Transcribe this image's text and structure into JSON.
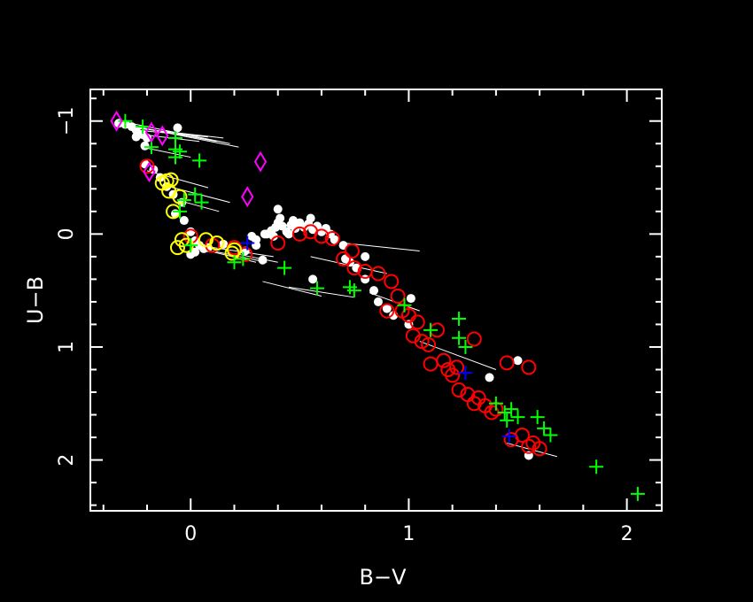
{
  "chart_data": {
    "type": "scatter",
    "title": "",
    "xlabel": "B−V",
    "ylabel": "U−B",
    "xlim": [
      -0.46,
      2.16
    ],
    "ylim": [
      2.45,
      -1.28
    ],
    "y_inverted": true,
    "grid": false,
    "legend": "none",
    "x_ticks": [
      {
        "value": 0,
        "label": "0"
      },
      {
        "value": 1,
        "label": "1"
      },
      {
        "value": 2,
        "label": "2"
      }
    ],
    "y_ticks": [
      {
        "value": -1,
        "label": "−1"
      },
      {
        "value": 0,
        "label": "0"
      },
      {
        "value": 1,
        "label": "1"
      },
      {
        "value": 2,
        "label": "2"
      }
    ],
    "x_minor_step": 0.2,
    "y_minor_step": 0.2,
    "colors": {
      "background": "#000000",
      "axes": "#ffffff",
      "white": "#ffffff",
      "red": "#ff0000",
      "green": "#00ff00",
      "yellow": "#ffff00",
      "magenta": "#ff00ff",
      "blue": "#0000ff"
    },
    "series": [
      {
        "marker": "dot",
        "color": "white",
        "points": [
          [
            -0.33,
            -0.98
          ],
          [
            -0.3,
            -0.97
          ],
          [
            -0.27,
            -0.95
          ],
          [
            -0.25,
            -0.92
          ],
          [
            -0.22,
            -0.88
          ],
          [
            -0.2,
            -0.85
          ],
          [
            -0.25,
            -0.86
          ],
          [
            -0.21,
            -0.78
          ],
          [
            -0.06,
            -0.94
          ],
          [
            -0.21,
            -0.62
          ],
          [
            -0.17,
            -0.57
          ],
          [
            -0.14,
            -0.5
          ],
          [
            -0.11,
            -0.42
          ],
          [
            -0.08,
            -0.35
          ],
          [
            -0.04,
            -0.28
          ],
          [
            -0.07,
            -0.18
          ],
          [
            -0.03,
            -0.12
          ],
          [
            0.0,
            -0.02
          ],
          [
            0.02,
            0.06
          ],
          [
            0.04,
            0.1
          ],
          [
            0.06,
            0.13
          ],
          [
            0.02,
            0.16
          ],
          [
            0.0,
            0.18
          ],
          [
            0.08,
            0.12
          ],
          [
            0.15,
            0.09
          ],
          [
            0.25,
            0.15
          ],
          [
            0.3,
            0.1
          ],
          [
            0.28,
            0.02
          ],
          [
            0.3,
            0.05
          ],
          [
            0.34,
            0.0
          ],
          [
            0.37,
            -0.03
          ],
          [
            0.39,
            -0.06
          ],
          [
            0.4,
            -0.1
          ],
          [
            0.42,
            -0.07
          ],
          [
            0.44,
            -0.02
          ],
          [
            0.46,
            -0.08
          ],
          [
            0.48,
            -0.05
          ],
          [
            0.5,
            -0.1
          ],
          [
            0.52,
            -0.06
          ],
          [
            0.54,
            -0.09
          ],
          [
            0.56,
            -0.04
          ],
          [
            0.58,
            -0.07
          ],
          [
            0.6,
            -0.02
          ],
          [
            0.62,
            -0.05
          ],
          [
            0.64,
            0.0
          ],
          [
            0.66,
            0.05
          ],
          [
            0.7,
            0.1
          ],
          [
            0.35,
            0.0
          ],
          [
            0.38,
            0.02
          ],
          [
            0.45,
            0.0
          ],
          [
            0.41,
            -0.14
          ],
          [
            0.55,
            -0.14
          ],
          [
            0.47,
            -0.12
          ],
          [
            0.4,
            -0.22
          ],
          [
            0.71,
            0.22
          ],
          [
            0.73,
            0.25
          ],
          [
            0.76,
            0.3
          ],
          [
            0.8,
            0.4
          ],
          [
            0.84,
            0.5
          ],
          [
            0.86,
            0.6
          ],
          [
            0.9,
            0.66
          ],
          [
            0.93,
            0.72
          ],
          [
            1.0,
            0.8
          ],
          [
            1.01,
            0.57
          ],
          [
            1.37,
            1.27
          ],
          [
            1.5,
            1.12
          ],
          [
            1.55,
            1.96
          ],
          [
            0.33,
            0.23
          ],
          [
            0.56,
            0.4
          ],
          [
            0.8,
            0.2
          ]
        ]
      },
      {
        "marker": "open-circle",
        "color": "red",
        "points": [
          [
            -0.2,
            -0.6
          ],
          [
            0.0,
            0.02
          ],
          [
            0.1,
            0.1
          ],
          [
            0.2,
            0.12
          ],
          [
            0.25,
            0.18
          ],
          [
            0.4,
            0.08
          ],
          [
            0.5,
            0.0
          ],
          [
            0.55,
            -0.02
          ],
          [
            0.6,
            0.02
          ],
          [
            0.65,
            0.04
          ],
          [
            0.7,
            0.22
          ],
          [
            0.74,
            0.15
          ],
          [
            0.75,
            0.3
          ],
          [
            0.8,
            0.33
          ],
          [
            0.86,
            0.35
          ],
          [
            0.92,
            0.42
          ],
          [
            0.95,
            0.55
          ],
          [
            0.9,
            0.68
          ],
          [
            0.97,
            0.68
          ],
          [
            1.0,
            0.72
          ],
          [
            1.04,
            0.78
          ],
          [
            1.02,
            0.9
          ],
          [
            1.06,
            0.95
          ],
          [
            1.09,
            0.98
          ],
          [
            1.13,
            0.85
          ],
          [
            1.1,
            1.15
          ],
          [
            1.16,
            1.12
          ],
          [
            1.18,
            1.2
          ],
          [
            1.2,
            1.25
          ],
          [
            1.22,
            1.18
          ],
          [
            1.23,
            1.38
          ],
          [
            1.27,
            1.42
          ],
          [
            1.3,
            1.5
          ],
          [
            1.32,
            1.45
          ],
          [
            1.35,
            1.52
          ],
          [
            1.38,
            1.58
          ],
          [
            1.4,
            1.55
          ],
          [
            1.45,
            1.14
          ],
          [
            1.3,
            0.93
          ],
          [
            1.55,
            1.18
          ],
          [
            1.47,
            1.82
          ],
          [
            1.52,
            1.78
          ],
          [
            1.55,
            1.88
          ],
          [
            1.57,
            1.85
          ],
          [
            1.6,
            1.9
          ]
        ]
      },
      {
        "marker": "open-circle",
        "color": "yellow",
        "points": [
          [
            -0.13,
            -0.45
          ],
          [
            -0.11,
            -0.47
          ],
          [
            -0.1,
            -0.38
          ],
          [
            -0.09,
            -0.48
          ],
          [
            -0.05,
            -0.33
          ],
          [
            -0.08,
            -0.2
          ],
          [
            -0.06,
            0.12
          ],
          [
            -0.04,
            0.05
          ],
          [
            -0.02,
            0.1
          ],
          [
            0.07,
            0.05
          ],
          [
            0.12,
            0.08
          ],
          [
            0.19,
            0.17
          ],
          [
            0.2,
            0.14
          ]
        ]
      },
      {
        "marker": "cross",
        "color": "green",
        "points": [
          [
            -0.3,
            -1.0
          ],
          [
            -0.22,
            -0.95
          ],
          [
            -0.18,
            -0.77
          ],
          [
            -0.07,
            -0.85
          ],
          [
            -0.07,
            -0.75
          ],
          [
            -0.07,
            -0.68
          ],
          [
            -0.05,
            -0.73
          ],
          [
            0.04,
            -0.65
          ],
          [
            0.02,
            -0.35
          ],
          [
            -0.03,
            -0.3
          ],
          [
            -0.05,
            -0.2
          ],
          [
            0.05,
            -0.28
          ],
          [
            0.0,
            0.1
          ],
          [
            0.2,
            0.25
          ],
          [
            0.24,
            0.22
          ],
          [
            0.43,
            0.3
          ],
          [
            0.58,
            0.48
          ],
          [
            0.73,
            0.47
          ],
          [
            0.75,
            0.5
          ],
          [
            0.98,
            0.63
          ],
          [
            1.23,
            0.75
          ],
          [
            1.23,
            0.92
          ],
          [
            1.1,
            0.85
          ],
          [
            1.26,
            1.0
          ],
          [
            1.4,
            1.5
          ],
          [
            1.44,
            1.58
          ],
          [
            1.47,
            1.55
          ],
          [
            1.45,
            1.65
          ],
          [
            1.5,
            1.62
          ],
          [
            1.59,
            1.62
          ],
          [
            1.62,
            1.72
          ],
          [
            1.65,
            1.78
          ],
          [
            1.86,
            2.06
          ],
          [
            2.05,
            2.3
          ]
        ]
      },
      {
        "marker": "cross",
        "color": "blue",
        "points": [
          [
            0.26,
            0.08
          ],
          [
            1.26,
            1.23
          ],
          [
            1.46,
            1.79
          ]
        ]
      },
      {
        "marker": "open-diamond",
        "color": "magenta",
        "points": [
          [
            -0.34,
            -1.0
          ],
          [
            -0.18,
            -0.9
          ],
          [
            -0.13,
            -0.87
          ],
          [
            -0.19,
            -0.55
          ],
          [
            0.32,
            -0.64
          ],
          [
            0.26,
            -0.33
          ]
        ]
      }
    ],
    "segments": [
      [
        [
          -0.33,
          -0.98
        ],
        [
          0.22,
          -0.77
        ]
      ],
      [
        [
          -0.3,
          -0.99
        ],
        [
          0.18,
          -0.8
        ]
      ],
      [
        [
          -0.28,
          -0.96
        ],
        [
          0.12,
          -0.82
        ]
      ],
      [
        [
          -0.27,
          -0.94
        ],
        [
          0.15,
          -0.85
        ]
      ],
      [
        [
          -0.25,
          -0.92
        ],
        [
          0.08,
          -0.86
        ]
      ],
      [
        [
          -0.22,
          -0.88
        ],
        [
          0.04,
          -0.82
        ]
      ],
      [
        [
          -0.2,
          -0.76
        ],
        [
          0.0,
          -0.68
        ]
      ],
      [
        [
          -0.2,
          -0.56
        ],
        [
          0.08,
          -0.41
        ]
      ],
      [
        [
          -0.1,
          -0.42
        ],
        [
          0.18,
          -0.28
        ]
      ],
      [
        [
          -0.06,
          -0.3
        ],
        [
          0.13,
          -0.2
        ]
      ],
      [
        [
          0.0,
          0.09
        ],
        [
          0.38,
          0.2
        ]
      ],
      [
        [
          0.04,
          0.13
        ],
        [
          0.3,
          0.25
        ]
      ],
      [
        [
          0.1,
          0.15
        ],
        [
          0.35,
          0.25
        ]
      ],
      [
        [
          0.22,
          0.18
        ],
        [
          0.4,
          0.25
        ]
      ],
      [
        [
          0.33,
          0.42
        ],
        [
          0.6,
          0.55
        ]
      ],
      [
        [
          0.45,
          0.47
        ],
        [
          0.75,
          0.56
        ]
      ],
      [
        [
          0.55,
          0.2
        ],
        [
          0.9,
          0.35
        ]
      ],
      [
        [
          0.7,
          0.08
        ],
        [
          1.05,
          0.15
        ]
      ],
      [
        [
          1.05,
          0.95
        ],
        [
          1.4,
          1.2
        ]
      ],
      [
        [
          1.45,
          1.85
        ],
        [
          1.68,
          1.97
        ]
      ],
      [
        [
          0.82,
          0.52
        ],
        [
          1.05,
          0.68
        ]
      ]
    ]
  }
}
